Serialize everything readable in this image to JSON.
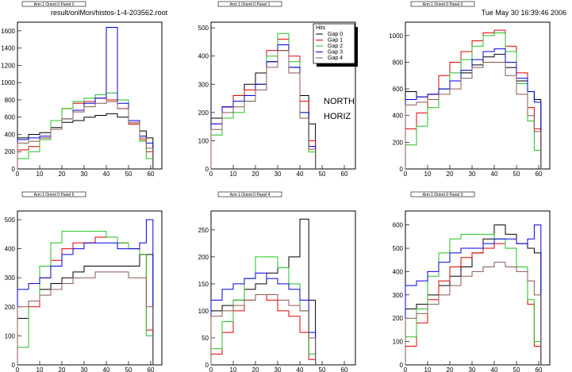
{
  "header": {
    "file": "result/onlMon/histos-1-4-203562.root",
    "timestamp": "Tue May 30 16:39:46 2006"
  },
  "legend": {
    "title": "Hits",
    "entries": [
      "Gap 0",
      "Gap 1",
      "Gap 2",
      "Gap 3",
      "Gap 4"
    ]
  },
  "annotations": [
    "NORTH",
    "HORIZ"
  ],
  "colors": {
    "Gap 0": "#000000",
    "Gap 1": "#e00000",
    "Gap 2": "#20c020",
    "Gap 3": "#0000e0",
    "Gap 4": "#8b5a50"
  },
  "chart_data": [
    {
      "type": "line",
      "title": "Arm 1 Orient 0 Panel 0",
      "xlim": [
        0,
        65
      ],
      "ylim": [
        0,
        1700
      ],
      "xticks": [
        0,
        10,
        20,
        30,
        40,
        50,
        60
      ],
      "yticks": [
        0,
        200,
        400,
        600,
        800,
        1000,
        1200,
        1400,
        1600
      ],
      "series": [
        {
          "name": "Gap 0",
          "x": [
            0,
            5,
            10,
            15,
            20,
            25,
            30,
            35,
            40,
            45,
            50,
            55,
            58
          ],
          "values": [
            360,
            400,
            420,
            480,
            540,
            560,
            600,
            620,
            640,
            600,
            520,
            440,
            360
          ]
        },
        {
          "name": "Gap 1",
          "x": [
            0,
            5,
            10,
            15,
            20,
            25,
            30,
            35,
            40,
            45,
            50,
            55,
            58
          ],
          "values": [
            220,
            260,
            360,
            560,
            700,
            760,
            780,
            820,
            800,
            700,
            520,
            340,
            200
          ]
        },
        {
          "name": "Gap 2",
          "x": [
            0,
            5,
            10,
            15,
            20,
            25,
            30,
            35,
            40,
            45,
            50,
            55,
            58
          ],
          "values": [
            120,
            200,
            340,
            560,
            700,
            780,
            820,
            860,
            880,
            800,
            560,
            320,
            120
          ]
        },
        {
          "name": "Gap 3",
          "x": [
            0,
            5,
            10,
            15,
            20,
            25,
            30,
            35,
            40,
            45,
            50,
            55,
            58
          ],
          "values": [
            340,
            360,
            380,
            460,
            580,
            680,
            760,
            820,
            1640,
            760,
            560,
            380,
            300
          ]
        },
        {
          "name": "Gap 4",
          "x": [
            0,
            5,
            10,
            15,
            20,
            25,
            30,
            35,
            40,
            45,
            50,
            55,
            58
          ],
          "values": [
            300,
            320,
            360,
            460,
            580,
            660,
            720,
            760,
            780,
            700,
            540,
            360,
            240
          ]
        }
      ]
    },
    {
      "type": "line",
      "title": "Arm 1 Orient 0 Panel 1",
      "xlim": [
        0,
        65
      ],
      "ylim": [
        0,
        520
      ],
      "xticks": [
        0,
        10,
        20,
        30,
        40,
        50,
        60
      ],
      "yticks": [
        0,
        100,
        200,
        300,
        400,
        500
      ],
      "series": [
        {
          "name": "Gap 0",
          "x": [
            0,
            5,
            10,
            15,
            20,
            25,
            30,
            35,
            40,
            44
          ],
          "values": [
            180,
            220,
            260,
            300,
            340,
            380,
            420,
            360,
            260,
            160
          ]
        },
        {
          "name": "Gap 1",
          "x": [
            0,
            5,
            10,
            15,
            20,
            25,
            30,
            35,
            40,
            44
          ],
          "values": [
            160,
            220,
            260,
            280,
            300,
            420,
            460,
            400,
            240,
            100
          ]
        },
        {
          "name": "Gap 2",
          "x": [
            0,
            5,
            10,
            15,
            20,
            25,
            30,
            35,
            40,
            44
          ],
          "values": [
            120,
            180,
            200,
            240,
            300,
            400,
            480,
            380,
            200,
            60
          ]
        },
        {
          "name": "Gap 3",
          "x": [
            0,
            5,
            10,
            15,
            20,
            25,
            30,
            35,
            40,
            44
          ],
          "values": [
            160,
            220,
            240,
            260,
            300,
            380,
            440,
            360,
            200,
            80
          ]
        },
        {
          "name": "Gap 4",
          "x": [
            0,
            5,
            10,
            15,
            20,
            25,
            30,
            35,
            40,
            44
          ],
          "values": [
            140,
            200,
            220,
            240,
            280,
            360,
            420,
            340,
            180,
            70
          ]
        }
      ]
    },
    {
      "type": "line",
      "title": "Arm 1 Orient 0 Panel 2",
      "xlim": [
        0,
        65
      ],
      "ylim": [
        0,
        1100
      ],
      "xticks": [
        0,
        10,
        20,
        30,
        40,
        50,
        60
      ],
      "yticks": [
        0,
        200,
        400,
        600,
        800,
        1000
      ],
      "series": [
        {
          "name": "Gap 0",
          "x": [
            0,
            5,
            10,
            15,
            20,
            25,
            30,
            35,
            40,
            45,
            50,
            55,
            58
          ],
          "values": [
            580,
            540,
            560,
            600,
            660,
            720,
            780,
            840,
            860,
            760,
            660,
            580,
            520
          ]
        },
        {
          "name": "Gap 1",
          "x": [
            0,
            5,
            10,
            15,
            20,
            25,
            30,
            35,
            40,
            45,
            50,
            55,
            58
          ],
          "values": [
            300,
            420,
            560,
            700,
            800,
            880,
            960,
            1020,
            1040,
            920,
            720,
            460,
            300
          ]
        },
        {
          "name": "Gap 2",
          "x": [
            0,
            5,
            10,
            15,
            20,
            25,
            30,
            35,
            40,
            45,
            50,
            55,
            58
          ],
          "values": [
            180,
            320,
            460,
            600,
            720,
            820,
            920,
            1000,
            1020,
            880,
            640,
            360,
            140
          ]
        },
        {
          "name": "Gap 3",
          "x": [
            0,
            5,
            10,
            15,
            20,
            25,
            30,
            35,
            40,
            45,
            50,
            55,
            58
          ],
          "values": [
            520,
            540,
            560,
            600,
            660,
            740,
            820,
            880,
            900,
            800,
            680,
            580,
            500
          ]
        },
        {
          "name": "Gap 4",
          "x": [
            0,
            5,
            10,
            15,
            20,
            25,
            30,
            35,
            40,
            45,
            50,
            55,
            58
          ],
          "values": [
            480,
            500,
            520,
            560,
            600,
            680,
            760,
            800,
            800,
            700,
            560,
            400,
            280
          ]
        }
      ]
    },
    {
      "type": "line",
      "title": "Arm 1 Orient 0 Panel 5",
      "xlim": [
        0,
        65
      ],
      "ylim": [
        0,
        530
      ],
      "xticks": [
        0,
        10,
        20,
        30,
        40,
        50,
        60
      ],
      "yticks": [
        0,
        100,
        200,
        300,
        400,
        500
      ],
      "series": [
        {
          "name": "Gap 0",
          "x": [
            0,
            5,
            10,
            15,
            20,
            25,
            30,
            35,
            40,
            45,
            50,
            55,
            58
          ],
          "values": [
            160,
            220,
            260,
            280,
            300,
            320,
            340,
            340,
            340,
            340,
            340,
            380,
            380
          ]
        },
        {
          "name": "Gap 1",
          "x": [
            0,
            5,
            10,
            15,
            20,
            25,
            30,
            35,
            40,
            45,
            50,
            55,
            58
          ],
          "values": [
            60,
            200,
            300,
            360,
            400,
            420,
            420,
            440,
            440,
            420,
            400,
            380,
            120
          ]
        },
        {
          "name": "Gap 2",
          "x": [
            0,
            5,
            10,
            15,
            20,
            25,
            30,
            35,
            40,
            45,
            50,
            55,
            58
          ],
          "values": [
            60,
            220,
            340,
            420,
            460,
            460,
            460,
            460,
            440,
            420,
            400,
            380,
            100
          ]
        },
        {
          "name": "Gap 3",
          "x": [
            0,
            5,
            10,
            15,
            20,
            25,
            30,
            35,
            40,
            45,
            50,
            55,
            58
          ],
          "values": [
            260,
            280,
            300,
            340,
            380,
            400,
            420,
            420,
            420,
            400,
            400,
            420,
            500
          ]
        },
        {
          "name": "Gap 4",
          "x": [
            0,
            5,
            10,
            15,
            20,
            25,
            30,
            35,
            40,
            45,
            50,
            55,
            58
          ],
          "values": [
            200,
            220,
            240,
            260,
            280,
            300,
            300,
            320,
            320,
            320,
            300,
            300,
            200
          ]
        }
      ]
    },
    {
      "type": "line",
      "title": "Arm 1 Orient 0 Panel 4",
      "xlim": [
        0,
        65
      ],
      "ylim": [
        0,
        285
      ],
      "xticks": [
        0,
        10,
        20,
        30,
        40,
        50,
        60
      ],
      "yticks": [
        0,
        50,
        100,
        150,
        200,
        250
      ],
      "series": [
        {
          "name": "Gap 0",
          "x": [
            0,
            5,
            10,
            15,
            20,
            25,
            30,
            35,
            40,
            44
          ],
          "values": [
            100,
            110,
            120,
            140,
            150,
            170,
            180,
            200,
            270,
            120
          ]
        },
        {
          "name": "Gap 1",
          "x": [
            0,
            5,
            10,
            15,
            20,
            25,
            30,
            35,
            40,
            44
          ],
          "values": [
            20,
            60,
            100,
            120,
            130,
            120,
            100,
            90,
            60,
            10
          ]
        },
        {
          "name": "Gap 2",
          "x": [
            0,
            5,
            10,
            15,
            20,
            25,
            30,
            35,
            40,
            44
          ],
          "values": [
            30,
            80,
            120,
            160,
            200,
            200,
            180,
            150,
            100,
            20
          ]
        },
        {
          "name": "Gap 3",
          "x": [
            0,
            5,
            10,
            15,
            20,
            25,
            30,
            35,
            40,
            44
          ],
          "values": [
            120,
            140,
            150,
            160,
            170,
            160,
            150,
            140,
            120,
            60
          ]
        },
        {
          "name": "Gap 4",
          "x": [
            0,
            5,
            10,
            15,
            20,
            25,
            30,
            35,
            40,
            44
          ],
          "values": [
            90,
            100,
            110,
            120,
            130,
            130,
            120,
            110,
            100,
            50
          ]
        }
      ]
    },
    {
      "type": "line",
      "title": "Arm 1 Orient 0 Panel 3",
      "xlim": [
        0,
        65
      ],
      "ylim": [
        0,
        660
      ],
      "xticks": [
        0,
        10,
        20,
        30,
        40,
        50,
        60
      ],
      "yticks": [
        0,
        100,
        200,
        300,
        400,
        500,
        600
      ],
      "series": [
        {
          "name": "Gap 0",
          "x": [
            0,
            5,
            10,
            15,
            20,
            25,
            30,
            35,
            40,
            45,
            50,
            55,
            58
          ],
          "values": [
            240,
            260,
            300,
            340,
            380,
            420,
            480,
            540,
            600,
            560,
            520,
            500,
            480
          ]
        },
        {
          "name": "Gap 1",
          "x": [
            0,
            5,
            10,
            15,
            20,
            25,
            30,
            35,
            40,
            45,
            50,
            55,
            58
          ],
          "values": [
            80,
            180,
            280,
            360,
            420,
            460,
            480,
            500,
            520,
            500,
            420,
            260,
            80
          ]
        },
        {
          "name": "Gap 2",
          "x": [
            0,
            5,
            10,
            15,
            20,
            25,
            30,
            35,
            40,
            45,
            50,
            55,
            58
          ],
          "values": [
            120,
            240,
            380,
            480,
            540,
            560,
            560,
            560,
            540,
            500,
            420,
            280,
            100
          ]
        },
        {
          "name": "Gap 3",
          "x": [
            0,
            5,
            10,
            15,
            20,
            25,
            30,
            35,
            40,
            45,
            50,
            55,
            58
          ],
          "values": [
            340,
            360,
            400,
            440,
            480,
            500,
            500,
            520,
            540,
            540,
            520,
            540,
            600
          ]
        },
        {
          "name": "Gap 4",
          "x": [
            0,
            5,
            10,
            15,
            20,
            25,
            30,
            35,
            40,
            45,
            50,
            55,
            58
          ],
          "values": [
            200,
            220,
            260,
            300,
            340,
            380,
            400,
            420,
            440,
            420,
            400,
            360,
            300
          ]
        }
      ]
    }
  ]
}
